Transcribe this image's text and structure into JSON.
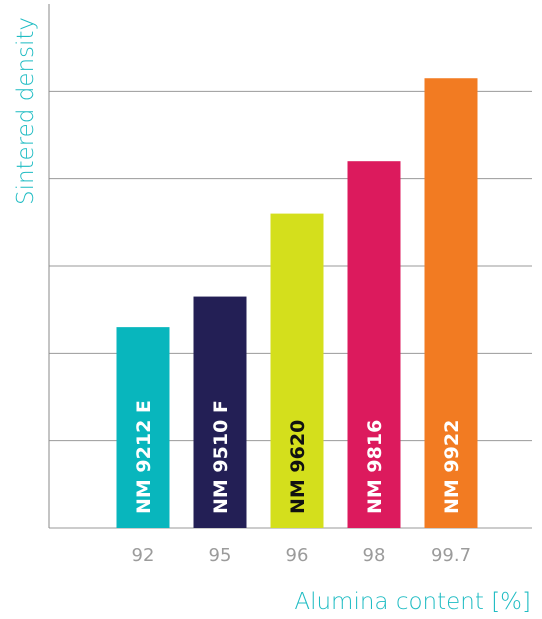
{
  "chart_data": {
    "type": "bar",
    "xlabel": "Alumina content [%]",
    "ylabel": "Sintered density",
    "categories": [
      "92",
      "95",
      "96",
      "98",
      "99.7"
    ],
    "values": [
      2.3,
      2.65,
      3.6,
      4.2,
      5.15
    ],
    "bar_labels": [
      "NM 9212 E",
      "NM 9510 F",
      "NM 9620",
      "NM 9816",
      "NM 9922"
    ],
    "colors": [
      "#08b6bd",
      "#231f55",
      "#d4df1c",
      "#dc1a5d",
      "#f27b22"
    ],
    "label_colors": [
      "#ffffff",
      "#ffffff",
      "#111111",
      "#ffffff",
      "#ffffff"
    ],
    "ylim": [
      0,
      6
    ],
    "y_ticks_shown": false,
    "grid": "horizontal",
    "accent_color": "#1fbcc3"
  }
}
